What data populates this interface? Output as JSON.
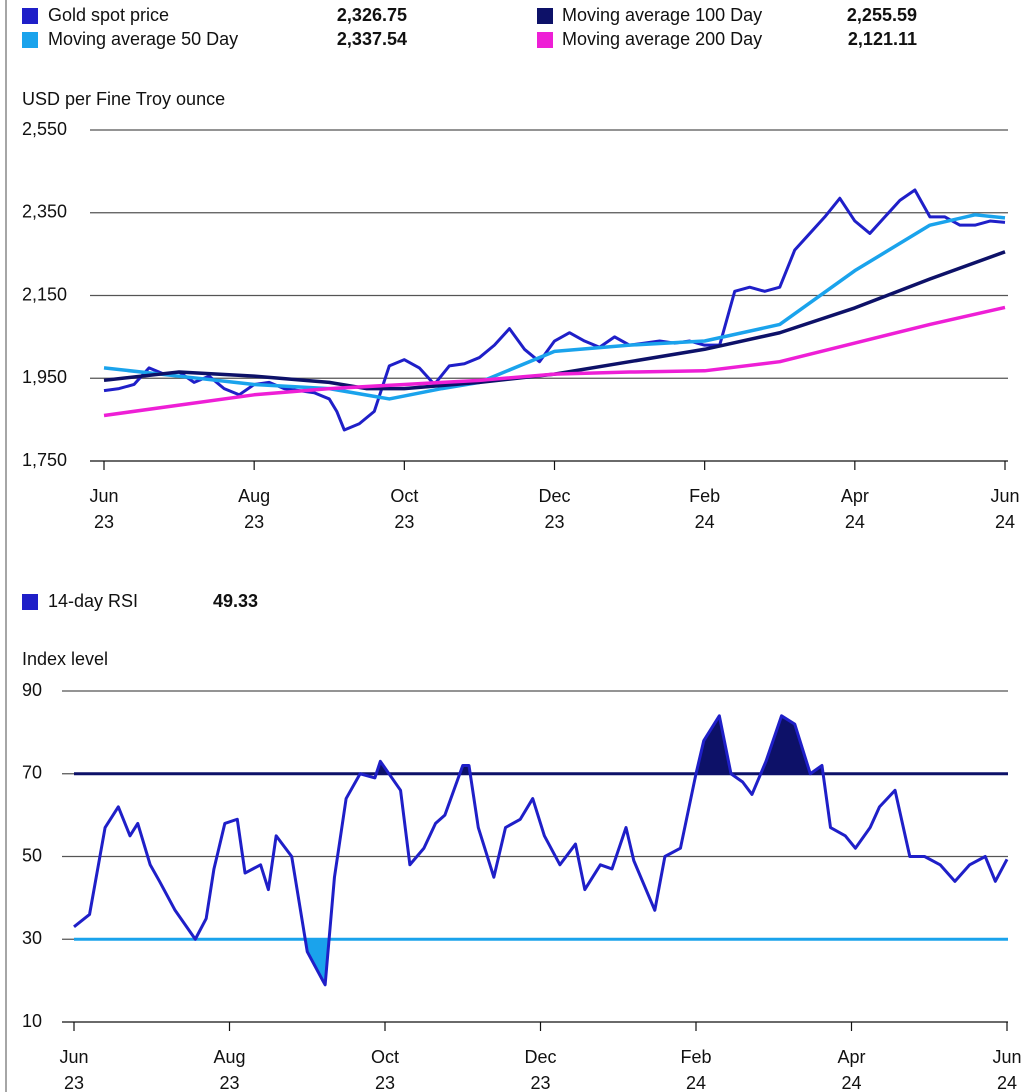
{
  "chart_data": [
    {
      "type": "line",
      "ylabel": "USD per Fine Troy ounce",
      "xlim": [
        0,
        12
      ],
      "xticks": [
        {
          "value": 0,
          "label": "Jun\n23"
        },
        {
          "value": 2,
          "label": "Aug\n23"
        },
        {
          "value": 4,
          "label": "Oct\n23"
        },
        {
          "value": 6,
          "label": "Dec\n23"
        },
        {
          "value": 8,
          "label": "Feb\n24"
        },
        {
          "value": 10,
          "label": "Apr\n24"
        },
        {
          "value": 12,
          "label": "Jun\n24"
        }
      ],
      "ylim": [
        1750,
        2550
      ],
      "yticks": [
        {
          "value": 1750,
          "label": "1,750"
        },
        {
          "value": 1950,
          "label": "1,950"
        },
        {
          "value": 2150,
          "label": "2,150"
        },
        {
          "value": 2350,
          "label": "2,350"
        },
        {
          "value": 2550,
          "label": "2,550"
        }
      ],
      "grid": true,
      "series": [
        {
          "name": "Gold spot price",
          "color": "#1f1fc8",
          "latest_label": "2,326.75",
          "x": [
            0,
            0.2,
            0.4,
            0.6,
            0.8,
            1.0,
            1.2,
            1.4,
            1.6,
            1.8,
            2.0,
            2.2,
            2.4,
            2.6,
            2.8,
            3.0,
            3.1,
            3.2,
            3.4,
            3.6,
            3.8,
            4.0,
            4.2,
            4.4,
            4.6,
            4.8,
            5.0,
            5.2,
            5.4,
            5.6,
            5.8,
            6.0,
            6.2,
            6.4,
            6.6,
            6.8,
            7.0,
            7.2,
            7.4,
            7.6,
            7.8,
            8.0,
            8.2,
            8.4,
            8.6,
            8.8,
            9.0,
            9.2,
            9.4,
            9.6,
            9.8,
            10.0,
            10.2,
            10.4,
            10.6,
            10.8,
            11.0,
            11.2,
            11.4,
            11.6,
            11.8,
            12.0
          ],
          "values": [
            1920,
            1925,
            1935,
            1975,
            1960,
            1965,
            1940,
            1955,
            1925,
            1910,
            1935,
            1940,
            1925,
            1920,
            1915,
            1900,
            1870,
            1825,
            1840,
            1870,
            1980,
            1995,
            1975,
            1935,
            1980,
            1985,
            2000,
            2030,
            2070,
            2020,
            1990,
            2040,
            2060,
            2040,
            2025,
            2050,
            2030,
            2035,
            2040,
            2035,
            2040,
            2030,
            2030,
            2160,
            2170,
            2160,
            2170,
            2260,
            2300,
            2340,
            2385,
            2330,
            2300,
            2340,
            2380,
            2405,
            2340,
            2340,
            2320,
            2320,
            2330,
            2326.75
          ]
        },
        {
          "name": "Moving average 50 Day",
          "color": "#1aa3ec",
          "latest_label": "2,337.54",
          "x": [
            0,
            1,
            2,
            3,
            3.8,
            4.5,
            5,
            6,
            7,
            8,
            9,
            10,
            11,
            11.6,
            12
          ],
          "values": [
            1975,
            1955,
            1935,
            1925,
            1900,
            1925,
            1940,
            2015,
            2030,
            2040,
            2080,
            2210,
            2320,
            2345,
            2337.54
          ]
        },
        {
          "name": "Moving average 100 Day",
          "color": "#0d1168",
          "latest_label": "2,255.59",
          "x": [
            0,
            1,
            2,
            3,
            3.5,
            4,
            5,
            6,
            7,
            8,
            9,
            10,
            11,
            12
          ],
          "values": [
            1945,
            1965,
            1955,
            1940,
            1925,
            1925,
            1940,
            1960,
            1990,
            2020,
            2060,
            2120,
            2190,
            2255.59
          ]
        },
        {
          "name": "Moving average 200 Day",
          "color": "#ee1fd6",
          "latest_label": "2,121.11",
          "x": [
            0,
            1,
            2,
            3,
            4,
            5,
            6,
            7,
            8,
            9,
            10,
            11,
            12
          ],
          "values": [
            1860,
            1885,
            1910,
            1925,
            1935,
            1945,
            1960,
            1965,
            1968,
            1990,
            2035,
            2080,
            2121.11
          ]
        }
      ]
    },
    {
      "type": "line",
      "ylabel": "Index level",
      "xlim": [
        0,
        12
      ],
      "xticks": [
        {
          "value": 0,
          "label": "Jun\n23"
        },
        {
          "value": 2,
          "label": "Aug\n23"
        },
        {
          "value": 4,
          "label": "Oct\n23"
        },
        {
          "value": 6,
          "label": "Dec\n23"
        },
        {
          "value": 8,
          "label": "Feb\n24"
        },
        {
          "value": 10,
          "label": "Apr\n24"
        },
        {
          "value": 12,
          "label": "Jun\n24"
        }
      ],
      "ylim": [
        10,
        90
      ],
      "yticks": [
        10,
        30,
        50,
        70,
        90
      ],
      "grid": true,
      "thresholds": [
        {
          "value": 70,
          "color": "#0d1168",
          "shade": "above"
        },
        {
          "value": 30,
          "color": "#1aa3ec",
          "shade": "below"
        }
      ],
      "series": [
        {
          "name": "14-day RSI",
          "color": "#1f1fc8",
          "latest_label": "49.33",
          "x": [
            0,
            0.2,
            0.4,
            0.57,
            0.72,
            0.82,
            0.98,
            1.1,
            1.3,
            1.56,
            1.7,
            1.8,
            1.94,
            2.1,
            2.2,
            2.4,
            2.5,
            2.6,
            2.8,
            3.0,
            3.2,
            3.23,
            3.35,
            3.5,
            3.68,
            3.87,
            3.94,
            4.2,
            4.32,
            4.5,
            4.65,
            4.77,
            5.0,
            5.08,
            5.2,
            5.4,
            5.55,
            5.74,
            5.9,
            6.05,
            6.25,
            6.45,
            6.57,
            6.77,
            6.92,
            7.1,
            7.2,
            7.47,
            7.6,
            7.8,
            8.0,
            8.1,
            8.3,
            8.45,
            8.6,
            8.72,
            8.9,
            9.1,
            9.27,
            9.47,
            9.62,
            9.73,
            9.92,
            10.05,
            10.24,
            10.36,
            10.56,
            10.75,
            10.94,
            11.14,
            11.33,
            11.52,
            11.72,
            11.85,
            12
          ],
          "values": [
            33,
            36,
            57,
            62,
            55,
            58,
            48,
            44,
            37,
            30,
            35,
            47,
            58,
            59,
            46,
            48,
            42,
            55,
            50,
            27,
            20,
            19,
            45,
            64,
            70,
            69,
            73,
            66,
            48,
            52,
            58,
            60,
            72,
            72,
            57,
            45,
            57,
            59,
            64,
            55,
            48,
            53,
            42,
            48,
            47,
            57,
            49,
            37,
            50,
            52,
            70,
            78,
            84,
            70,
            68,
            65,
            73,
            84,
            82,
            70,
            72,
            57,
            55,
            52,
            57,
            62,
            66,
            50,
            50,
            48,
            44,
            48,
            50,
            44,
            49.33
          ]
        }
      ]
    }
  ]
}
